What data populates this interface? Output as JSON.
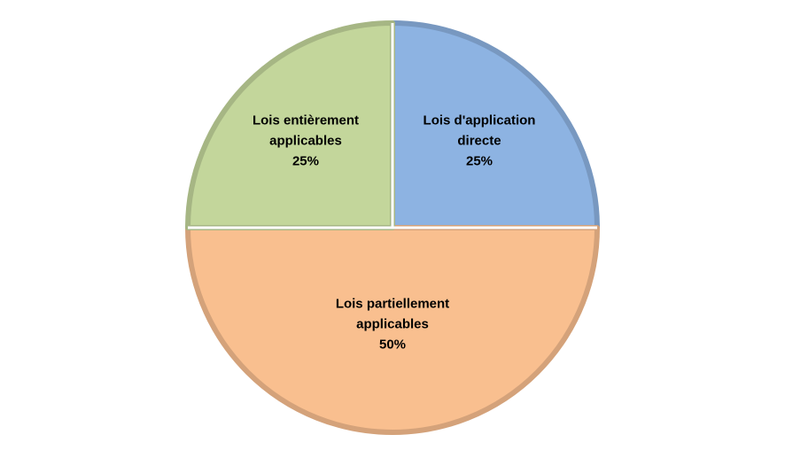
{
  "chart_data": {
    "type": "pie",
    "categories": [
      "Lois d'application directe",
      "Lois partiellement applicables",
      "Lois entièrement applicables"
    ],
    "values": [
      25,
      50,
      25
    ],
    "value_labels": [
      "25%",
      "50%",
      "25%"
    ],
    "colors": [
      "#8db3e2",
      "#f9bf8f",
      "#c3d69b"
    ]
  }
}
